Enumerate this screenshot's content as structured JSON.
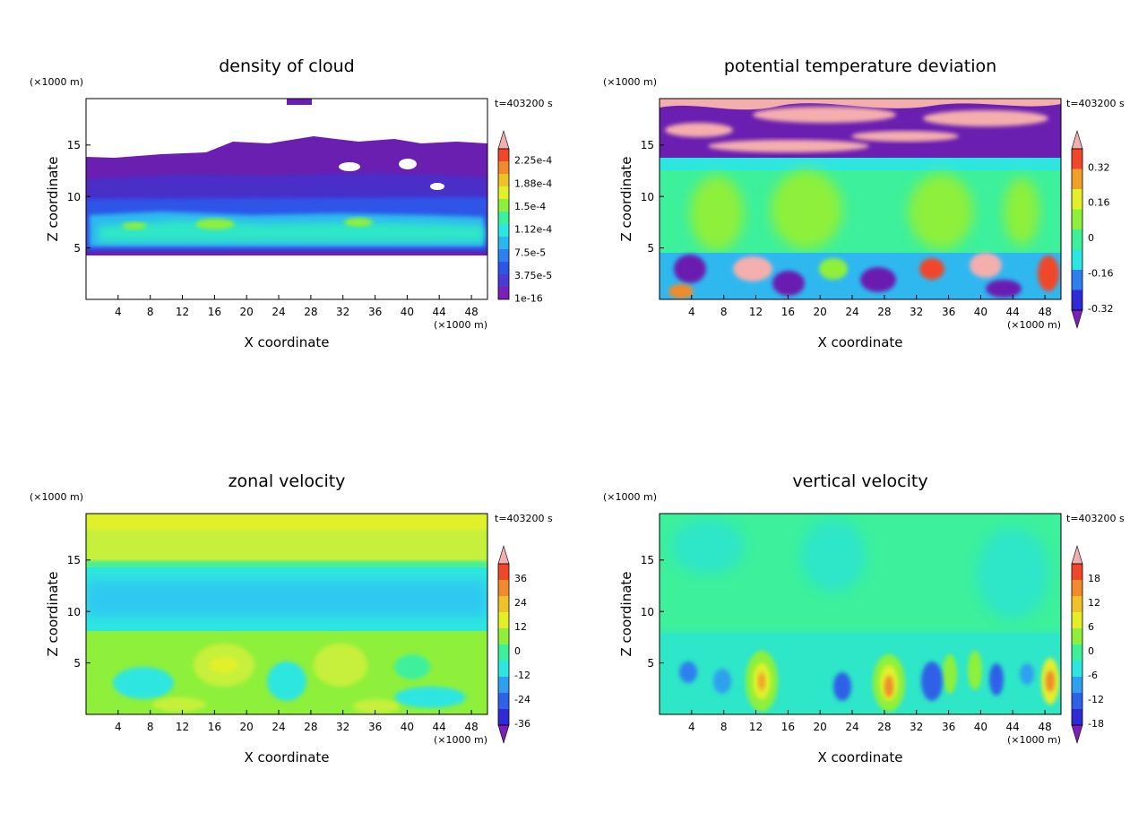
{
  "chart_data": [
    {
      "type": "heatmap",
      "title": "density of cloud",
      "xlabel": "X coordinate",
      "ylabel": "Z coordinate",
      "x_unit": "(×1000 m)",
      "y_unit": "(×1000 m)",
      "time_label": "t=403200 s",
      "xlim": [
        0,
        50
      ],
      "ylim": [
        0,
        19.5
      ],
      "x_ticks": [
        4,
        8,
        12,
        16,
        20,
        24,
        28,
        32,
        36,
        40,
        44,
        48
      ],
      "y_ticks": [
        5,
        10,
        15
      ],
      "colorbar": {
        "labels": [
          "2.25e-4",
          "1.88e-4",
          "1.5e-4",
          "1.12e-4",
          "7.5e-5",
          "3.75e-5",
          "1e-16"
        ],
        "colors": [
          "#7a1fb8",
          "#4a3bd6",
          "#2d55e8",
          "#2f7ff0",
          "#28b8f0",
          "#2ee6e0",
          "#3cf09c",
          "#8ef03a",
          "#e2f02a",
          "#f0c22a",
          "#f08a2a",
          "#f0462a",
          "#f4aeae"
        ],
        "lower_extend": false
      },
      "grid": false
    },
    {
      "type": "heatmap",
      "title": "potential temperature deviation",
      "xlabel": "X coordinate",
      "ylabel": "Z coordinate",
      "x_unit": "(×1000 m)",
      "y_unit": "(×1000 m)",
      "time_label": "t=403200 s",
      "xlim": [
        0,
        50
      ],
      "ylim": [
        0,
        19.5
      ],
      "x_ticks": [
        4,
        8,
        12,
        16,
        20,
        24,
        28,
        32,
        36,
        40,
        44,
        48
      ],
      "y_ticks": [
        5,
        10,
        15
      ],
      "colorbar": {
        "labels": [
          "0.32",
          "0.16",
          "0",
          "-0.16",
          "-0.32"
        ],
        "colors": [
          "#7a1fb8",
          "#2d2ad6",
          "#2f7ff0",
          "#2ee6e0",
          "#3cf09c",
          "#8ef03a",
          "#e2f02a",
          "#f0a02a",
          "#f0462a",
          "#f4aeae"
        ],
        "lower_extend": true
      },
      "grid": false
    },
    {
      "type": "heatmap",
      "title": "zonal velocity",
      "xlabel": "X coordinate",
      "ylabel": "Z coordinate",
      "x_unit": "(×1000 m)",
      "y_unit": "(×1000 m)",
      "time_label": "t=403200 s",
      "xlim": [
        0,
        50
      ],
      "ylim": [
        0,
        19.5
      ],
      "x_ticks": [
        4,
        8,
        12,
        16,
        20,
        24,
        28,
        32,
        36,
        40,
        44,
        48
      ],
      "y_ticks": [
        5,
        10,
        15
      ],
      "colorbar": {
        "labels": [
          "36",
          "24",
          "12",
          "0",
          "-12",
          "-24",
          "-36"
        ],
        "colors": [
          "#7a1fb8",
          "#2d2ad6",
          "#2f60e8",
          "#2fa0f0",
          "#2ee6e0",
          "#3cf09c",
          "#8ef03a",
          "#e2f02a",
          "#f0c22a",
          "#f08a2a",
          "#f0462a",
          "#f4aeae"
        ],
        "lower_extend": true
      },
      "grid": false
    },
    {
      "type": "heatmap",
      "title": "vertical velocity",
      "xlabel": "X coordinate",
      "ylabel": "Z coordinate",
      "x_unit": "(×1000 m)",
      "y_unit": "(×1000 m)",
      "time_label": "t=403200 s",
      "xlim": [
        0,
        50
      ],
      "ylim": [
        0,
        19.5
      ],
      "x_ticks": [
        4,
        8,
        12,
        16,
        20,
        24,
        28,
        32,
        36,
        40,
        44,
        48
      ],
      "y_ticks": [
        5,
        10,
        15
      ],
      "colorbar": {
        "labels": [
          "18",
          "12",
          "6",
          "0",
          "-6",
          "-12",
          "-18"
        ],
        "colors": [
          "#7a1fb8",
          "#2d2ad6",
          "#2f60e8",
          "#2fa0f0",
          "#2ee6e0",
          "#3cf09c",
          "#8ef03a",
          "#e2f02a",
          "#f0c22a",
          "#f08a2a",
          "#f0462a",
          "#f4aeae"
        ],
        "lower_extend": true
      },
      "grid": false
    }
  ]
}
